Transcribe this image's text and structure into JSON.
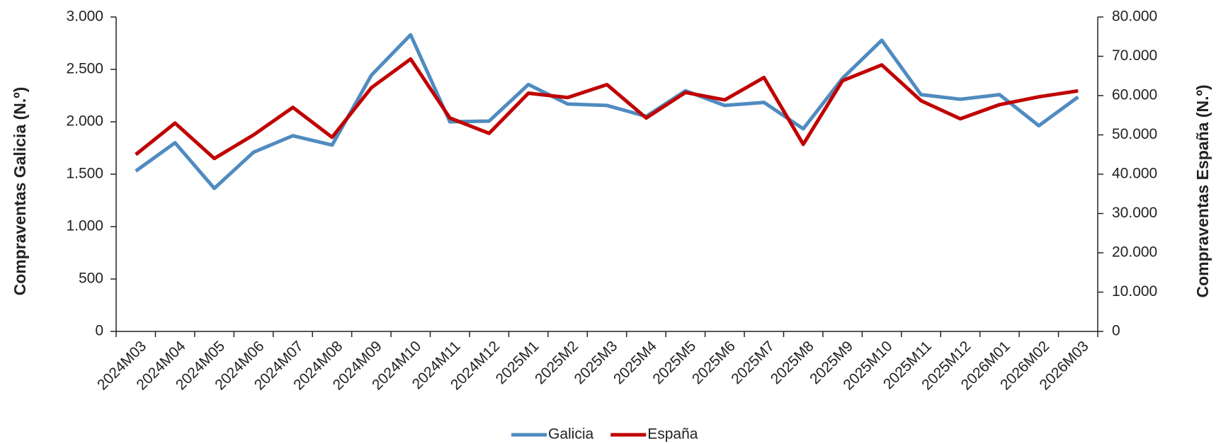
{
  "chart_data": {
    "type": "line",
    "categories": [
      "2024M03",
      "2024M04",
      "2024M05",
      "2024M06",
      "2024M07",
      "2024M08",
      "2024M09",
      "2024M10",
      "2024M11",
      "2024M12",
      "2025M1",
      "2025M2",
      "2025M3",
      "2025M4",
      "2025M5",
      "2025M6",
      "2025M7",
      "2025M8",
      "2025M9",
      "2025M10",
      "2025M11",
      "2025M12",
      "2026M01",
      "2026M02",
      "2026M03"
    ],
    "series": [
      {
        "name": "Galicia",
        "color": "#4f8bc0",
        "values": [
          1530,
          1800,
          1365,
          1710,
          1867,
          1778,
          2444,
          2830,
          2000,
          2007,
          2356,
          2170,
          2156,
          2052,
          2296,
          2156,
          2185,
          1933,
          2415,
          2778,
          2259,
          2215,
          2259,
          1963,
          2237
        ]
      },
      {
        "name": "España",
        "color": "#c00000",
        "axis": "y2",
        "values": [
          45000,
          53000,
          44000,
          50000,
          57000,
          49400,
          62000,
          69300,
          54300,
          50400,
          60600,
          59500,
          62800,
          54300,
          60800,
          58900,
          64600,
          47600,
          63800,
          67800,
          58700,
          54100,
          57700,
          59700,
          61200
        ]
      }
    ],
    "ylabel": "Compraventas Galicia (N.º)",
    "y2label": "Compraventas España (N.º)",
    "ylim": [
      0,
      3000
    ],
    "yticks": [
      0,
      500,
      {
        "value": 1000,
        "label": "1.000"
      },
      {
        "value": 1500,
        "label": "1.500"
      },
      {
        "value": 2000,
        "label": "2.000"
      },
      {
        "value": 2500,
        "label": "2.500"
      },
      {
        "value": 3000,
        "label": "3.000"
      }
    ],
    "y2lim": [
      0,
      80000
    ],
    "y2ticks": [
      0,
      {
        "value": 10000,
        "label": "10.000"
      },
      {
        "value": 20000,
        "label": "20.000"
      },
      {
        "value": 30000,
        "label": "30.000"
      },
      {
        "value": 40000,
        "label": "40.000"
      },
      {
        "value": 50000,
        "label": "50.000"
      },
      {
        "value": 60000,
        "label": "60.000"
      },
      {
        "value": 70000,
        "label": "70.000"
      },
      {
        "value": 80000,
        "label": "80.000"
      }
    ],
    "legend": "bottom"
  }
}
